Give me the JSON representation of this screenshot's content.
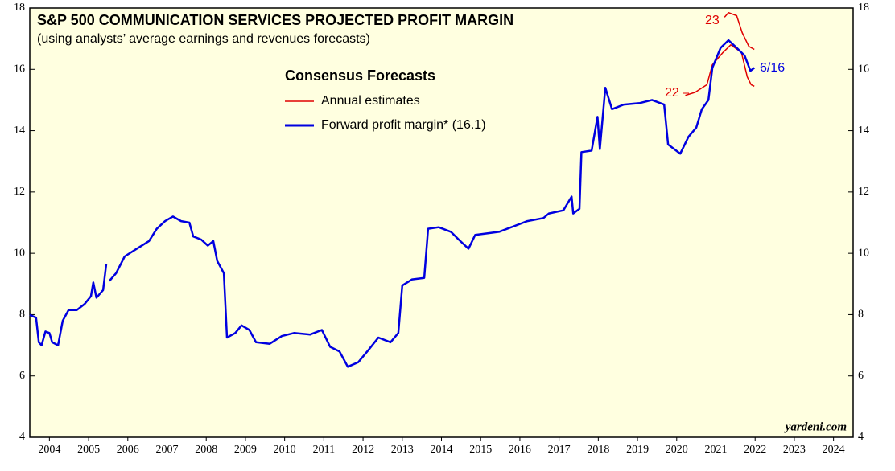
{
  "chart_data": {
    "type": "line",
    "title": "S&P 500 COMMUNICATION SERVICES PROJECTED PROFIT MARGIN",
    "subtitle": "(using analysts’ average earnings and revenues forecasts)",
    "legend_title": "Consensus Forecasts",
    "source": "yardeni.com",
    "annotations": [
      "22",
      "23",
      "6/16"
    ],
    "xlim": [
      2004,
      2025
    ],
    "xticks": [
      {
        "value": 2004.5,
        "label": "2004"
      },
      {
        "value": 2005.5,
        "label": "2005"
      },
      {
        "value": 2006.5,
        "label": "2006"
      },
      {
        "value": 2007.5,
        "label": "2007"
      },
      {
        "value": 2008.5,
        "label": "2008"
      },
      {
        "value": 2009.5,
        "label": "2009"
      },
      {
        "value": 2010.5,
        "label": "2010"
      },
      {
        "value": 2011.5,
        "label": "2011"
      },
      {
        "value": 2012.5,
        "label": "2012"
      },
      {
        "value": 2013.5,
        "label": "2013"
      },
      {
        "value": 2014.5,
        "label": "2014"
      },
      {
        "value": 2015.5,
        "label": "2015"
      },
      {
        "value": 2016.5,
        "label": "2016"
      },
      {
        "value": 2017.5,
        "label": "2017"
      },
      {
        "value": 2018.5,
        "label": "2018"
      },
      {
        "value": 2019.5,
        "label": "2019"
      },
      {
        "value": 2020.5,
        "label": "2020"
      },
      {
        "value": 2021.5,
        "label": "2021"
      },
      {
        "value": 2022.5,
        "label": "2022"
      },
      {
        "value": 2023.5,
        "label": "2023"
      },
      {
        "value": 2024.5,
        "label": "2024"
      }
    ],
    "ylim": [
      4,
      18
    ],
    "yticks": [
      4,
      6,
      8,
      10,
      12,
      14,
      16,
      18
    ],
    "series": [
      {
        "name": "Annual estimates",
        "color": "#e00000",
        "x": [
          2020.72,
          2020.97,
          2021.27,
          2021.41,
          2021.68,
          2021.88,
          2022.15,
          2022.3,
          2022.4,
          2022.48,
          null,
          2021.72,
          2021.82,
          2022.03,
          2022.17,
          2022.34,
          2022.48
        ],
        "values": [
          15.15,
          15.25,
          15.5,
          16.15,
          16.55,
          16.8,
          16.55,
          15.75,
          15.5,
          15.45,
          null,
          17.7,
          17.85,
          17.75,
          17.2,
          16.75,
          16.65
        ]
      },
      {
        "name": "Forward profit margin* (16.1)",
        "color": "#0000e0",
        "x": [
          2004.0,
          2004.16,
          2004.23,
          2004.3,
          2004.4,
          2004.5,
          2004.57,
          2004.72,
          2004.84,
          2004.99,
          2005.2,
          2005.4,
          2005.56,
          2005.62,
          2005.7,
          2005.87,
          2005.95,
          null,
          2006.03,
          2006.2,
          2006.42,
          2006.73,
          2007.04,
          2007.24,
          2007.45,
          2007.65,
          2007.86,
          2008.07,
          2008.17,
          2008.37,
          2008.54,
          2008.68,
          2008.78,
          2008.95,
          2009.03,
          2009.24,
          2009.4,
          2009.6,
          2009.77,
          2010.12,
          2010.43,
          2010.74,
          2011.15,
          2011.45,
          2011.66,
          2011.9,
          2012.11,
          2012.38,
          2012.64,
          2012.89,
          2013.2,
          2013.4,
          2013.5,
          2013.75,
          2014.06,
          2014.16,
          2014.43,
          2014.74,
          2014.94,
          2015.19,
          2015.36,
          2015.66,
          2015.97,
          2016.28,
          2016.69,
          2017.1,
          2017.24,
          2017.61,
          2017.82,
          2017.86,
          2018.02,
          2018.07,
          2018.33,
          2018.48,
          2018.54,
          2018.68,
          2018.85,
          2019.15,
          2019.56,
          2019.87,
          2020.18,
          2020.28,
          2020.59,
          2020.8,
          2021.0,
          2021.14,
          2021.31,
          2021.41,
          2021.62,
          2021.82,
          2022.03,
          2022.23,
          2022.38,
          2022.48
        ],
        "values": [
          7.99,
          7.9,
          7.1,
          7.0,
          7.45,
          7.4,
          7.1,
          7.0,
          7.8,
          8.15,
          8.15,
          8.35,
          8.6,
          9.05,
          8.55,
          8.8,
          9.65,
          null,
          9.1,
          9.35,
          9.9,
          10.15,
          10.4,
          10.8,
          11.05,
          11.2,
          11.05,
          11.0,
          10.55,
          10.45,
          10.25,
          10.4,
          9.75,
          9.35,
          7.25,
          7.4,
          7.65,
          7.5,
          7.1,
          7.05,
          7.3,
          7.4,
          7.35,
          7.5,
          6.95,
          6.8,
          6.3,
          6.45,
          6.85,
          7.25,
          7.1,
          7.4,
          8.95,
          9.15,
          9.2,
          10.8,
          10.85,
          10.7,
          10.45,
          10.15,
          10.6,
          10.65,
          10.7,
          10.85,
          11.05,
          11.15,
          11.3,
          11.4,
          11.85,
          11.3,
          11.45,
          13.3,
          13.35,
          14.45,
          13.4,
          15.4,
          14.7,
          14.85,
          14.9,
          15.0,
          14.85,
          13.55,
          13.25,
          13.8,
          14.1,
          14.7,
          15.0,
          16.05,
          16.7,
          16.95,
          16.7,
          16.45,
          15.95,
          16.05
        ]
      }
    ]
  }
}
